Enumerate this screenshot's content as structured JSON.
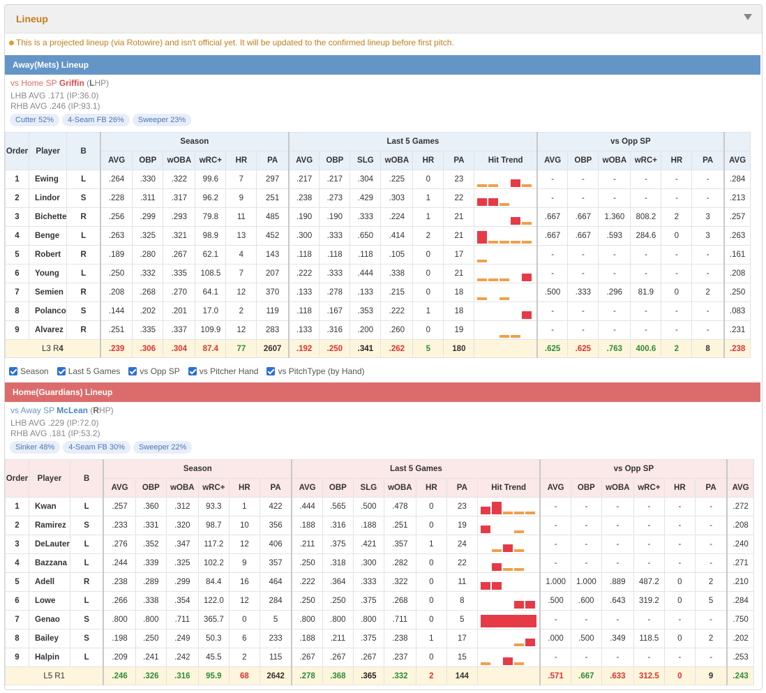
{
  "panel": {
    "title": "Lineup",
    "notice": "This is a projected lineup (via Rotowire) and isn't official yet. It will be updated to the confirmed lineup before first pitch."
  },
  "columns": {
    "order": "Order",
    "player": "Player",
    "bat": "B",
    "group_season": "Season",
    "group_last5": "Last 5 Games",
    "group_opp": "vs Opp SP",
    "season": [
      "AVG",
      "OBP",
      "wOBA",
      "wRC+",
      "HR",
      "PA"
    ],
    "last5": [
      "AVG",
      "OBP",
      "SLG",
      "wOBA",
      "HR",
      "PA",
      "Hit Trend"
    ],
    "opp": [
      "AVG",
      "OBP",
      "wOBA",
      "wRC+",
      "HR",
      "PA"
    ],
    "extra": "AVG"
  },
  "filters": [
    "Season",
    "Last 5 Games",
    "vs Opp SP",
    "vs Pitcher Hand",
    "vs PitchType (by Hand)"
  ],
  "colors": {
    "away": "#6495c7",
    "home": "#dc6c6c",
    "trend_red": "#e63a47",
    "trend_orange": "#f0a04a"
  },
  "away": {
    "header": "Away(Mets) Lineup",
    "sp_prefix": "vs Home SP",
    "sp_name": "Griffin",
    "sp_hand_open": "(",
    "sp_hand_letter": "L",
    "sp_hand_rest": "HP)",
    "lhb": "LHB AVG .171 (IP:36.0)",
    "rhb": "RHB AVG .246 (IP:93.1)",
    "pitches": [
      "Cutter 52%",
      "4-Seam FB 26%",
      "Sweeper 23%"
    ],
    "rows": [
      {
        "order": "1",
        "name": "Ewing",
        "bat": "L",
        "season": [
          ".264",
          ".330",
          ".322",
          "99.6",
          "7",
          "297"
        ],
        "last5": [
          ".217",
          ".217",
          ".304",
          ".225",
          "0",
          "23"
        ],
        "trend": [
          0.2,
          0.2,
          0,
          0.55,
          0.2
        ],
        "opp": [
          "-",
          "-",
          "-",
          "-",
          "-",
          "-"
        ],
        "extra": ".284"
      },
      {
        "order": "2",
        "name": "Lindor",
        "bat": "S",
        "season": [
          ".228",
          ".311",
          ".317",
          "96.2",
          "9",
          "251"
        ],
        "last5": [
          ".238",
          ".273",
          ".429",
          ".303",
          "1",
          "22"
        ],
        "trend": [
          0.55,
          0.55,
          0.2,
          0,
          0
        ],
        "opp": [
          "-",
          "-",
          "-",
          "-",
          "-",
          "-"
        ],
        "extra": ".213"
      },
      {
        "order": "3",
        "name": "Bichette",
        "bat": "R",
        "season": [
          ".256",
          ".299",
          ".293",
          "79.8",
          "11",
          "485"
        ],
        "last5": [
          ".190",
          ".190",
          ".333",
          ".224",
          "1",
          "21"
        ],
        "trend": [
          0,
          0,
          0,
          0.55,
          0.2
        ],
        "opp": [
          ".667",
          ".667",
          "1.360",
          "808.2",
          "2",
          "3"
        ],
        "extra": ".257"
      },
      {
        "order": "4",
        "name": "Benge",
        "bat": "L",
        "season": [
          ".263",
          ".325",
          ".321",
          "98.9",
          "13",
          "452"
        ],
        "last5": [
          ".300",
          ".333",
          ".650",
          ".414",
          "2",
          "21"
        ],
        "trend": [
          0.9,
          0.2,
          0.2,
          0.2,
          0.2
        ],
        "opp": [
          ".667",
          ".667",
          ".593",
          "284.6",
          "0",
          "3"
        ],
        "extra": ".263"
      },
      {
        "order": "5",
        "name": "Robert",
        "bat": "R",
        "season": [
          ".189",
          ".280",
          ".267",
          "62.1",
          "4",
          "143"
        ],
        "last5": [
          ".118",
          ".118",
          ".118",
          ".105",
          "0",
          "17"
        ],
        "trend": [
          0.2,
          0,
          0,
          0,
          0
        ],
        "opp": [
          "-",
          "-",
          "-",
          "-",
          "-",
          "-"
        ],
        "extra": ".161"
      },
      {
        "order": "6",
        "name": "Young",
        "bat": "L",
        "season": [
          ".250",
          ".332",
          ".335",
          "108.5",
          "7",
          "207"
        ],
        "last5": [
          ".222",
          ".333",
          ".444",
          ".338",
          "0",
          "21"
        ],
        "trend": [
          0.2,
          0.2,
          0.2,
          0,
          0.55
        ],
        "opp": [
          "-",
          "-",
          "-",
          "-",
          "-",
          "-"
        ],
        "extra": ".208"
      },
      {
        "order": "7",
        "name": "Semien",
        "bat": "R",
        "season": [
          ".208",
          ".268",
          ".270",
          "64.1",
          "12",
          "370"
        ],
        "last5": [
          ".133",
          ".278",
          ".133",
          ".215",
          "0",
          "18"
        ],
        "trend": [
          0.2,
          0,
          0.2,
          0,
          0
        ],
        "opp": [
          ".500",
          ".333",
          ".296",
          "81.9",
          "0",
          "2"
        ],
        "extra": ".250"
      },
      {
        "order": "8",
        "name": "Polanco",
        "bat": "S",
        "season": [
          ".144",
          ".202",
          ".201",
          "17.0",
          "2",
          "119"
        ],
        "last5": [
          ".118",
          ".167",
          ".353",
          ".222",
          "1",
          "18"
        ],
        "trend": [
          0,
          0,
          0,
          0,
          0.55
        ],
        "opp": [
          "-",
          "-",
          "-",
          "-",
          "-",
          "-"
        ],
        "extra": ".083"
      },
      {
        "order": "9",
        "name": "Alvarez",
        "bat": "R",
        "season": [
          ".251",
          ".335",
          ".337",
          "109.9",
          "12",
          "283"
        ],
        "last5": [
          ".133",
          ".316",
          ".200",
          ".260",
          "0",
          "19"
        ],
        "trend": [
          0,
          0,
          0.2,
          0.2,
          0
        ],
        "opp": [
          "-",
          "-",
          "-",
          "-",
          "-",
          "-"
        ],
        "extra": ".231"
      }
    ],
    "total": {
      "label_l": "L3 R",
      "label_r": "4",
      "season": [
        ".239",
        ".306",
        ".304",
        "87.4",
        "77",
        "2607"
      ],
      "last5": [
        ".192",
        ".250",
        ".341",
        ".262",
        "5",
        "180"
      ],
      "opp": [
        ".625",
        ".625",
        ".763",
        "400.6",
        "2",
        "8"
      ],
      "extra": ".238"
    }
  },
  "home": {
    "header": "Home(Guardians) Lineup",
    "sp_prefix": "vs Away SP",
    "sp_name": "McLean",
    "sp_hand_open": "(",
    "sp_hand_letter": "R",
    "sp_hand_rest": "HP)",
    "lhb": "LHB AVG .229 (IP:72.0)",
    "rhb": "RHB AVG .181 (IP:53.2)",
    "pitches": [
      "Sinker 48%",
      "4-Seam FB 30%",
      "Sweeper 22%"
    ],
    "rows": [
      {
        "order": "1",
        "name": "Kwan",
        "bat": "L",
        "season": [
          ".257",
          ".360",
          ".312",
          "93.3",
          "1",
          "422"
        ],
        "last5": [
          ".444",
          ".565",
          ".500",
          ".478",
          "0",
          "23"
        ],
        "trend": [
          0.55,
          0.9,
          0.2,
          0.2,
          0.2
        ],
        "opp": [
          "-",
          "-",
          "-",
          "-",
          "-",
          "-"
        ],
        "extra": ".272"
      },
      {
        "order": "2",
        "name": "Ramirez",
        "bat": "S",
        "season": [
          ".233",
          ".331",
          ".320",
          "98.7",
          "10",
          "356"
        ],
        "last5": [
          ".188",
          ".316",
          ".188",
          ".251",
          "0",
          "19"
        ],
        "trend": [
          0.55,
          0,
          0,
          0.2,
          0
        ],
        "opp": [
          "-",
          "-",
          "-",
          "-",
          "-",
          "-"
        ],
        "extra": ".208"
      },
      {
        "order": "3",
        "name": "DeLauter",
        "bat": "L",
        "season": [
          ".276",
          ".352",
          ".347",
          "117.2",
          "12",
          "406"
        ],
        "last5": [
          ".211",
          ".375",
          ".421",
          ".357",
          "1",
          "24"
        ],
        "trend": [
          0,
          0.2,
          0.55,
          0.2,
          0
        ],
        "opp": [
          "-",
          "-",
          "-",
          "-",
          "-",
          "-"
        ],
        "extra": ".240"
      },
      {
        "order": "4",
        "name": "Bazzana",
        "bat": "L",
        "season": [
          ".244",
          ".339",
          ".325",
          "102.2",
          "9",
          "357"
        ],
        "last5": [
          ".250",
          ".318",
          ".300",
          ".282",
          "0",
          "22"
        ],
        "trend": [
          0,
          0.55,
          0.2,
          0.2,
          0
        ],
        "opp": [
          "-",
          "-",
          "-",
          "-",
          "-",
          "-"
        ],
        "extra": ".271"
      },
      {
        "order": "5",
        "name": "Adell",
        "bat": "R",
        "season": [
          ".238",
          ".289",
          ".299",
          "84.4",
          "16",
          "464"
        ],
        "last5": [
          ".222",
          ".364",
          ".333",
          ".322",
          "0",
          "11"
        ],
        "trend": [
          0.55,
          0.55,
          0,
          0,
          0
        ],
        "opp": [
          "1.000",
          "1.000",
          ".889",
          "487.2",
          "0",
          "2"
        ],
        "extra": ".210"
      },
      {
        "order": "6",
        "name": "Lowe",
        "bat": "L",
        "season": [
          ".266",
          ".338",
          ".354",
          "122.0",
          "12",
          "284"
        ],
        "last5": [
          ".250",
          ".250",
          ".375",
          ".268",
          "0",
          "8"
        ],
        "trend": [
          0,
          0,
          0,
          0.55,
          0.55
        ],
        "opp": [
          ".500",
          ".600",
          ".643",
          "319.2",
          "0",
          "5"
        ],
        "extra": ".284"
      },
      {
        "order": "7",
        "name": "Genao",
        "bat": "S",
        "season": [
          ".800",
          ".800",
          ".711",
          "365.7",
          "0",
          "5"
        ],
        "last5": [
          ".800",
          ".800",
          ".800",
          ".711",
          "0",
          "5"
        ],
        "trend": [
          0.9,
          0.9,
          0.9,
          0.9,
          0.9
        ],
        "opp": [
          "-",
          "-",
          "-",
          "-",
          "-",
          "-"
        ],
        "extra": ".750"
      },
      {
        "order": "8",
        "name": "Bailey",
        "bat": "S",
        "season": [
          ".198",
          ".250",
          ".249",
          "50.3",
          "6",
          "233"
        ],
        "last5": [
          ".188",
          ".211",
          ".375",
          ".238",
          "1",
          "17"
        ],
        "trend": [
          0,
          0,
          0,
          0.2,
          0.55
        ],
        "opp": [
          ".000",
          ".500",
          ".349",
          "118.5",
          "0",
          "2"
        ],
        "extra": ".202"
      },
      {
        "order": "9",
        "name": "Halpin",
        "bat": "L",
        "season": [
          ".209",
          ".241",
          ".242",
          "45.5",
          "2",
          "115"
        ],
        "last5": [
          ".267",
          ".267",
          ".267",
          ".237",
          "0",
          "15"
        ],
        "trend": [
          0.2,
          0,
          0.55,
          0.2,
          0
        ],
        "opp": [
          "-",
          "-",
          "-",
          "-",
          "-",
          "-"
        ],
        "extra": ".253"
      }
    ],
    "total": {
      "label_l": "L5 R",
      "label_r": "1",
      "season": [
        ".246",
        ".326",
        ".316",
        "95.9",
        "68",
        "2642"
      ],
      "last5": [
        ".278",
        ".368",
        ".365",
        ".332",
        "2",
        "144"
      ],
      "opp": [
        ".571",
        ".667",
        ".633",
        "312.5",
        "0",
        "9"
      ],
      "extra": ".243"
    }
  }
}
